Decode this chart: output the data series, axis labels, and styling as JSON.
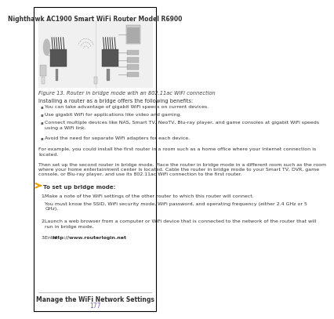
{
  "page_bg": "#ffffff",
  "border_color": "#000000",
  "header_text": "Nighthawk AC1900 Smart WiFi Router Model R6900",
  "header_fontsize": 5.5,
  "header_bold": true,
  "figure_caption": "Figure 13. Router in bridge mode with an 802.11ac WiFi connection",
  "figure_caption_fontsize": 4.8,
  "intro_text": "Installing a router as a bridge offers the following benefits:",
  "intro_fontsize": 4.8,
  "bullet_color": "#555555",
  "bullets": [
    "You can take advantage of gigabit WiFi speeds on current devices.",
    "Use gigabit WiFi for applications like video and gaming.",
    "Connect multiple devices like NAS, Smart TV, NeoTV, Blu-ray player, and game consoles at gigabit WiFi speeds\nusing a WiFi link.",
    "Avoid the need for separate WiFi adapters for each device."
  ],
  "bullet_fontsize": 4.5,
  "para1": "For example, you could install the first router in a room such as a home office where your Internet connection is\nlocated.",
  "para2": "Then set up the second router in bridge mode. Place the router in bridge mode in a different room such as the room\nwhere your home entertainment center is located. Cable the router in bridge mode to your Smart TV, DVR, game\nconsole, or Blu-ray player, and use its 802.11ac WiFi connection to the first router.",
  "para_fontsize": 4.5,
  "arrow_color": "#e8a000",
  "heading_bold_text": "To set up bridge mode:",
  "heading_fontsize": 5.0,
  "steps": [
    {
      "num": "1.",
      "text": "Make a note of the WiFi settings of the other router to which this router will connect."
    },
    {
      "num": "",
      "text": "You must know the SSID, WiFi security mode, WiFi password, and operating frequency (either 2.4 GHz or 5\nGHz)."
    },
    {
      "num": "2.",
      "text": "Launch a web browser from a computer or WiFi device that is connected to the network of the router that will\nrun in bridge mode."
    },
    {
      "num": "3.",
      "text": "Enter http://www.routerlogin.net."
    }
  ],
  "step_fontsize": 4.5,
  "url_bold": "http://www.routerlogin.net",
  "footer_line_color": "#aaaaaa",
  "footer_text": "Manage the WiFi Network Settings",
  "footer_fontsize": 5.5,
  "footer_bold": true,
  "page_num": "177",
  "page_num_color": "#7b5ea7",
  "page_num_fontsize": 5.5,
  "outer_border_color": "#000000"
}
